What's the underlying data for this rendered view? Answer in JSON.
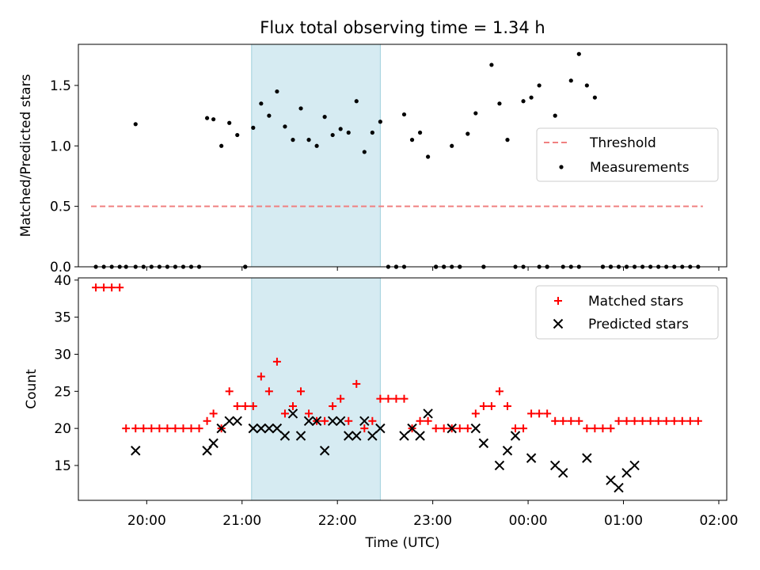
{
  "chart_data": [
    {
      "type": "scatter",
      "title": "Flux total observing time = 1.34 h",
      "xlabel": "",
      "ylabel": "Matched/Predicted stars",
      "xlim": [
        "19:17",
        "02:05"
      ],
      "ylim": [
        0,
        1.84
      ],
      "y_ticks": [
        0.0,
        0.5,
        1.0,
        1.5
      ],
      "y_tick_labels": [
        "0.0",
        "0.5",
        "1.0",
        "1.5"
      ],
      "x_tick_labels_shown": false,
      "highlight_span": {
        "x0": "21:06",
        "x1": "22:27",
        "color": "#add8e6"
      },
      "legend_placement": "center-right",
      "series": [
        {
          "name": "Threshold",
          "type": "line",
          "style": "dashed",
          "color": "#f08080",
          "x": [
            "19:25",
            "01:50"
          ],
          "y": [
            0.5,
            0.5
          ]
        },
        {
          "name": "Measurements",
          "type": "scatter",
          "color": "#000000",
          "x": [
            "19:28",
            "19:33",
            "19:38",
            "19:43",
            "19:47",
            "20:23",
            "20:28",
            "20:33",
            "19:53",
            "19:58",
            "20:03",
            "20:08",
            "20:13",
            "20:18",
            "20:38",
            "20:42",
            "20:47",
            "20:52",
            "20:57",
            "21:02",
            "21:07",
            "21:12",
            "21:17",
            "21:22",
            "21:27",
            "21:32",
            "21:37",
            "21:42",
            "21:47",
            "21:52",
            "21:57",
            "22:02",
            "22:07",
            "22:12",
            "22:17",
            "22:22",
            "22:27",
            "22:32",
            "22:37",
            "22:42",
            "22:47",
            "22:52",
            "22:57",
            "23:02",
            "23:07",
            "23:12",
            "23:17",
            "23:22",
            "23:27",
            "23:32",
            "23:37",
            "23:42",
            "23:47",
            "23:52",
            "23:57",
            "00:02",
            "00:07",
            "00:12",
            "00:17",
            "00:22",
            "00:27",
            "00:32",
            "00:37",
            "00:42",
            "00:47",
            "00:52",
            "00:57",
            "01:02",
            "01:07",
            "01:12",
            "01:17",
            "01:22",
            "01:27",
            "01:32",
            "01:37",
            "01:42",
            "01:47",
            "19:53",
            "21:02",
            "22:37",
            "22:42",
            "23:02",
            "23:07",
            "23:12",
            "23:17",
            "23:32",
            "23:57",
            "00:07",
            "00:12",
            "00:27",
            "00:32",
            "00:47",
            "00:52"
          ],
          "y": [
            0,
            0,
            0,
            0,
            0,
            0,
            0,
            0,
            0,
            0,
            0,
            0,
            0,
            0,
            1.23,
            1.22,
            1.0,
            1.19,
            1.09,
            0,
            1.15,
            1.35,
            1.25,
            1.45,
            1.16,
            1.05,
            1.31,
            1.05,
            1.0,
            1.24,
            1.09,
            1.14,
            1.11,
            1.37,
            0.95,
            1.11,
            1.2,
            0,
            0,
            1.26,
            1.05,
            1.11,
            0.91,
            0,
            0,
            1.0,
            0,
            1.1,
            1.27,
            0,
            1.67,
            1.35,
            1.05,
            0,
            1.37,
            1.4,
            1.5,
            0,
            1.25,
            0,
            1.54,
            1.76,
            1.5,
            1.4,
            0,
            0,
            0,
            0,
            0,
            0,
            0,
            0,
            0,
            0,
            0,
            0,
            0,
            1.18,
            0,
            0,
            0,
            0,
            0,
            0,
            0,
            0,
            0,
            0,
            0,
            0,
            0,
            0,
            0
          ]
        }
      ]
    },
    {
      "type": "scatter",
      "title": "",
      "xlabel": "Time (UTC)",
      "ylabel": "Count",
      "xlim": [
        "19:17",
        "02:05"
      ],
      "ylim": [
        10.3,
        40.3
      ],
      "y_ticks": [
        15,
        20,
        25,
        30,
        35,
        40
      ],
      "y_tick_labels": [
        "15",
        "20",
        "25",
        "30",
        "35",
        "40"
      ],
      "x_ticks": [
        "20:00",
        "21:00",
        "22:00",
        "23:00",
        "00:00",
        "01:00",
        "02:00"
      ],
      "x_tick_labels": [
        "20:00",
        "21:00",
        "22:00",
        "23:00",
        "00:00",
        "01:00",
        "02:00"
      ],
      "highlight_span": {
        "x0": "21:06",
        "x1": "22:27",
        "color": "#add8e6"
      },
      "legend_placement": "upper-right",
      "series": [
        {
          "name": "Matched stars",
          "marker": "+",
          "color": "#ff0000",
          "x": [
            "19:28",
            "19:33",
            "19:38",
            "19:43",
            "19:47",
            "19:53",
            "19:58",
            "20:03",
            "20:08",
            "20:13",
            "20:18",
            "20:23",
            "20:28",
            "20:33",
            "20:38",
            "20:42",
            "20:47",
            "20:52",
            "20:57",
            "21:02",
            "21:07",
            "21:12",
            "21:17",
            "21:22",
            "21:27",
            "21:32",
            "21:37",
            "21:42",
            "21:47",
            "21:52",
            "21:57",
            "22:02",
            "22:07",
            "22:12",
            "22:17",
            "22:22",
            "22:27",
            "22:32",
            "22:37",
            "22:42",
            "22:47",
            "22:52",
            "22:57",
            "23:02",
            "23:07",
            "23:12",
            "23:17",
            "23:22",
            "23:27",
            "23:32",
            "23:37",
            "23:42",
            "23:47",
            "23:52",
            "23:57",
            "00:02",
            "00:07",
            "00:12",
            "00:17",
            "00:22",
            "00:27",
            "00:32",
            "00:37",
            "00:42",
            "00:47",
            "00:52",
            "00:57",
            "01:02",
            "01:07",
            "01:12",
            "01:17",
            "01:22",
            "01:27",
            "01:32",
            "01:37",
            "01:42",
            "01:47"
          ],
          "y": [
            39,
            39,
            39,
            39,
            20,
            20,
            20,
            20,
            20,
            20,
            20,
            20,
            20,
            20,
            21,
            22,
            20,
            25,
            23,
            23,
            23,
            27,
            25,
            29,
            22,
            23,
            25,
            22,
            21,
            21,
            23,
            24,
            21,
            26,
            20,
            21,
            24,
            24,
            24,
            24,
            20,
            21,
            21,
            20,
            20,
            20,
            20,
            20,
            22,
            23,
            23,
            25,
            23,
            20,
            20,
            22,
            22,
            22,
            21,
            21,
            21,
            21,
            20,
            20,
            20,
            20,
            21,
            21,
            21,
            21,
            21,
            21,
            21,
            21,
            21,
            21,
            21
          ]
        },
        {
          "name": "Predicted stars",
          "marker": "x",
          "color": "#000000",
          "x": [
            "19:53",
            "20:38",
            "20:42",
            "20:47",
            "20:52",
            "20:57",
            "21:07",
            "21:12",
            "21:17",
            "21:22",
            "21:27",
            "21:32",
            "21:37",
            "21:42",
            "21:47",
            "21:52",
            "21:57",
            "22:02",
            "22:07",
            "22:12",
            "22:17",
            "22:22",
            "22:27",
            "22:42",
            "22:47",
            "22:52",
            "22:57",
            "23:12",
            "23:27",
            "23:32",
            "23:42",
            "23:47",
            "23:52",
            "00:02",
            "00:17",
            "00:22",
            "00:37",
            "00:52",
            "00:57",
            "01:02",
            "01:07"
          ],
          "y": [
            17,
            17,
            18,
            20,
            21,
            21,
            20,
            20,
            20,
            20,
            19,
            22,
            19,
            21,
            21,
            17,
            21,
            21,
            19,
            19,
            21,
            19,
            20,
            19,
            20,
            19,
            22,
            20,
            20,
            18,
            15,
            17,
            19,
            16,
            15,
            14,
            16,
            13,
            12,
            14,
            15
          ]
        }
      ]
    }
  ]
}
